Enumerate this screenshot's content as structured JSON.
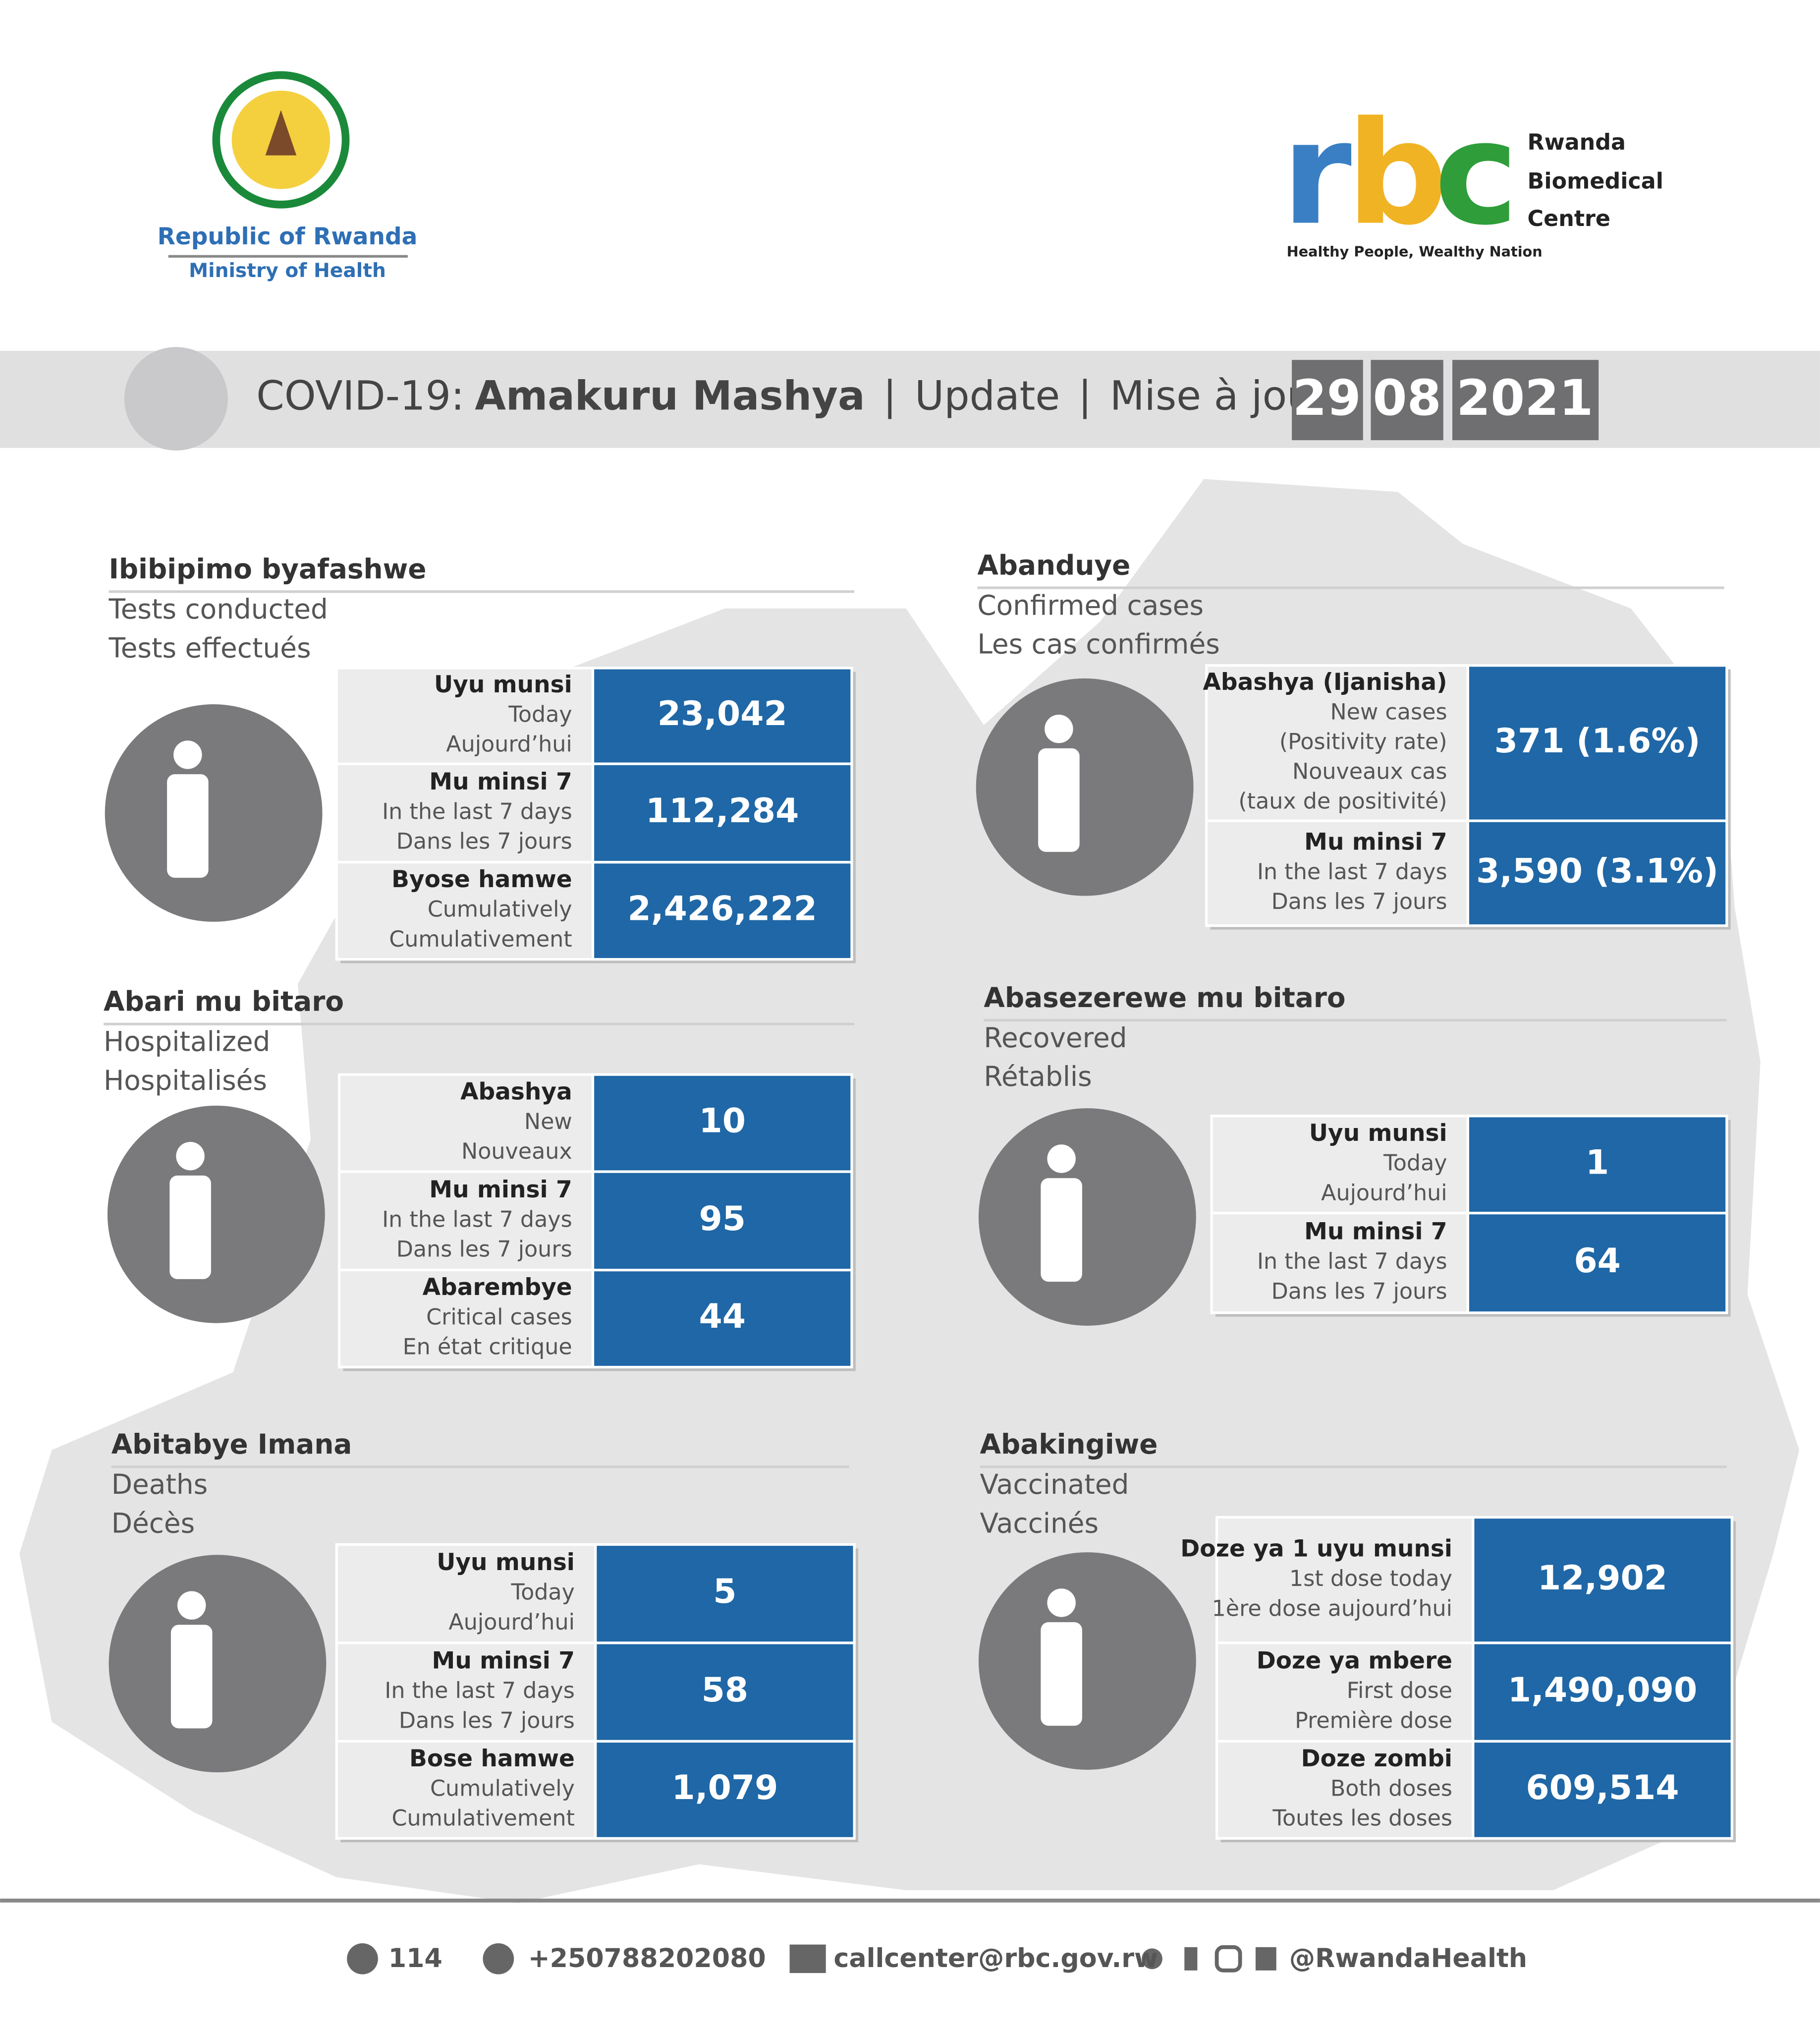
{
  "header": {
    "ministry": [
      "Republic of Rwanda",
      "Ministry of Health"
    ],
    "rbc": {
      "letters": [
        "r",
        "b",
        "c"
      ],
      "name": [
        "Rwanda",
        "Biomedical",
        "Centre"
      ],
      "tagline": "Healthy People, Wealthy Nation"
    },
    "title": {
      "prefix": "COVID-19:",
      "main": "Amakuru Mashya",
      "sep1": "|",
      "en": "Update",
      "sep2": "|",
      "fr": "Mise à jour"
    },
    "date": [
      "29",
      "08",
      "2021"
    ]
  },
  "sections": [
    {
      "title": "Ibibipimo byafashwe",
      "subtitles": [
        "Tests conducted",
        "Tests effectués"
      ],
      "rows": [
        {
          "labels": [
            "Uyu munsi",
            "Today",
            "Aujourd’hui"
          ],
          "value": "23,042"
        },
        {
          "labels": [
            "Mu minsi 7",
            "In the last 7 days",
            "Dans les 7 jours"
          ],
          "value": "112,284"
        },
        {
          "labels": [
            "Byose hamwe",
            "Cumulatively",
            "Cumulativement"
          ],
          "value": "2,426,222"
        }
      ]
    },
    {
      "title": "Abanduye",
      "subtitles": [
        "Confirmed cases",
        "Les cas confirmés"
      ],
      "rows": [
        {
          "labels": [
            "Abashya (Ijanisha)",
            "New cases",
            "(Positivity rate)",
            "Nouveaux cas",
            "(taux de positivité)"
          ],
          "value": "371 (1.6%)"
        },
        {
          "labels": [
            "Mu minsi 7",
            "In the last 7 days",
            "Dans les 7 jours"
          ],
          "value": "3,590 (3.1%)"
        }
      ]
    },
    {
      "title": "Abari mu bitaro",
      "subtitles": [
        "Hospitalized",
        "Hospitalisés"
      ],
      "rows": [
        {
          "labels": [
            "Abashya",
            "New",
            "Nouveaux"
          ],
          "value": "10"
        },
        {
          "labels": [
            "Mu minsi 7",
            "In the last 7 days",
            "Dans les 7 jours"
          ],
          "value": "95"
        },
        {
          "labels": [
            "Abarembye",
            "Critical cases",
            "En état critique"
          ],
          "value": "44"
        }
      ]
    },
    {
      "title": "Abasezerewe mu bitaro",
      "subtitles": [
        "Recovered",
        "Rétablis"
      ],
      "rows": [
        {
          "labels": [
            "Uyu munsi",
            "Today",
            "Aujourd’hui"
          ],
          "value": "1"
        },
        {
          "labels": [
            "Mu minsi 7",
            "In the last 7 days",
            "Dans les 7 jours"
          ],
          "value": "64"
        }
      ]
    },
    {
      "title": "Abitabye Imana",
      "subtitles": [
        "Deaths",
        "Décès"
      ],
      "rows": [
        {
          "labels": [
            "Uyu munsi",
            "Today",
            "Aujourd’hui"
          ],
          "value": "5"
        },
        {
          "labels": [
            "Mu minsi 7",
            "In the last 7 days",
            "Dans les 7 jours"
          ],
          "value": "58"
        },
        {
          "labels": [
            "Bose hamwe",
            "Cumulatively",
            "Cumulativement"
          ],
          "value": "1,079"
        }
      ]
    },
    {
      "title": "Abakingiwe",
      "subtitles": [
        "Vaccinated",
        "Vaccinés"
      ],
      "rows": [
        {
          "labels": [
            "Doze ya 1 uyu munsi",
            "1st dose today",
            "1ère dose  aujourd’hui"
          ],
          "value": "12,902"
        },
        {
          "labels": [
            "Doze ya mbere",
            "First dose",
            "Première dose"
          ],
          "value": "1,490,090"
        },
        {
          "labels": [
            "Doze zombi",
            "Both doses",
            "Toutes les doses"
          ],
          "value": "609,514"
        }
      ]
    }
  ],
  "footer": [
    "114",
    "+250788202080",
    "callcenter@rbc.gov.rw",
    "@RwandaHealth"
  ]
}
